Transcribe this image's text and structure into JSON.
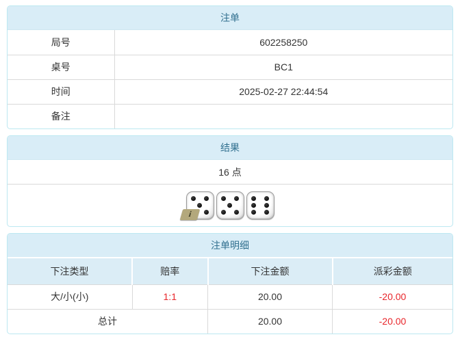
{
  "panels": {
    "order": {
      "title": "注单",
      "rows": [
        {
          "label": "局号",
          "value": "602258250"
        },
        {
          "label": "桌号",
          "value": "BC1"
        },
        {
          "label": "时间",
          "value": "2025-02-27 22:44:54"
        },
        {
          "label": "备注",
          "value": ""
        }
      ]
    },
    "result": {
      "title": "结果",
      "points": "16 点",
      "dice": [
        {
          "value": 5,
          "badge": "i"
        },
        {
          "value": 5,
          "badge": ""
        },
        {
          "value": 6,
          "badge": ""
        }
      ]
    },
    "detail": {
      "title": "注单明细",
      "columns": [
        "下注类型",
        "赔率",
        "下注金额",
        "派彩金额"
      ],
      "rows": [
        {
          "bet_type": "大/小(小)",
          "odds": "1:1",
          "bet_amount": "20.00",
          "payout": "-20.00"
        }
      ],
      "total": {
        "label": "总计",
        "bet_amount": "20.00",
        "payout": "-20.00"
      }
    }
  },
  "colors": {
    "panel_border": "#bce8f1",
    "heading_bg": "#d9edf7",
    "heading_text": "#31708f",
    "column_header_bg": "#dbedf6",
    "table_border": "#d9d9d9",
    "negative_text": "#e8252a",
    "badge_bg": "#b3a87c",
    "text": "#333333"
  }
}
